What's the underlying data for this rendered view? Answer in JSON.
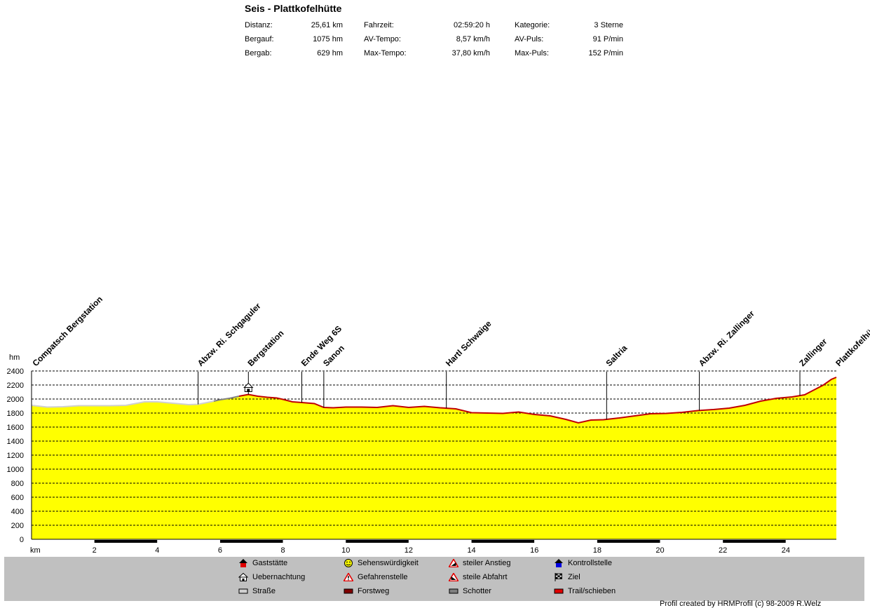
{
  "header": {
    "title": "Seis - Plattkofelhütte",
    "stats": [
      {
        "label": "Distanz:",
        "value": "25,61 km"
      },
      {
        "label": "Fahrzeit:",
        "value": "02:59:20 h"
      },
      {
        "label": "Kategorie:",
        "value": "3 Sterne"
      },
      {
        "label": "Bergauf:",
        "value": "1075 hm"
      },
      {
        "label": "AV-Tempo:",
        "value": "8,57 km/h"
      },
      {
        "label": "AV-Puls:",
        "value": "91 P/min"
      },
      {
        "label": "Bergab:",
        "value": "629 hm"
      },
      {
        "label": "Max-Tempo:",
        "value": "37,80 km/h"
      },
      {
        "label": "Max-Puls:",
        "value": "152 P/min"
      }
    ]
  },
  "chart_data": {
    "type": "area",
    "title": "",
    "xlabel": "km",
    "ylabel": "hm",
    "xlim": [
      0,
      25.61
    ],
    "ylim": [
      0,
      2400
    ],
    "yticks": [
      0,
      200,
      400,
      600,
      800,
      1000,
      1200,
      1400,
      1600,
      1800,
      2000,
      2200,
      2400
    ],
    "xticks": [
      2,
      4,
      6,
      8,
      10,
      12,
      14,
      16,
      18,
      20,
      22,
      24
    ],
    "grid": true,
    "fill_color": "#ffff00",
    "x": [
      0,
      0.5,
      1,
      1.5,
      2,
      2.5,
      3,
      3.3,
      3.6,
      4,
      4.5,
      5,
      5.3,
      5.7,
      6,
      6.3,
      6.6,
      6.9,
      7.2,
      7.5,
      7.8,
      8,
      8.3,
      8.6,
      9,
      9.3,
      9.6,
      10,
      10.5,
      11,
      11.5,
      12,
      12.5,
      13,
      13.5,
      14,
      14.5,
      15,
      15.5,
      16,
      16.5,
      17,
      17.4,
      17.8,
      18.2,
      18.7,
      19.2,
      19.7,
      20.2,
      20.7,
      21.2,
      21.7,
      22.2,
      22.7,
      23.2,
      23.7,
      24.2,
      24.6,
      24.9,
      25.2,
      25.45,
      25.61
    ],
    "values": [
      1910,
      1885,
      1890,
      1905,
      1905,
      1905,
      1910,
      1935,
      1960,
      1960,
      1940,
      1920,
      1925,
      1960,
      1990,
      2010,
      2040,
      2065,
      2040,
      2025,
      2015,
      1995,
      1960,
      1950,
      1935,
      1880,
      1875,
      1885,
      1885,
      1880,
      1905,
      1880,
      1895,
      1875,
      1860,
      1805,
      1800,
      1795,
      1815,
      1780,
      1760,
      1710,
      1660,
      1700,
      1705,
      1730,
      1760,
      1790,
      1795,
      1810,
      1835,
      1850,
      1870,
      1910,
      1970,
      2010,
      2030,
      2060,
      2130,
      2200,
      2280,
      2310
    ],
    "surfaces": [
      {
        "from": 0,
        "to": 5.8,
        "type": "Straße"
      },
      {
        "from": 5.8,
        "to": 6.6,
        "type": "Schotter"
      },
      {
        "from": 6.6,
        "to": 25.61,
        "type": "Trail/schieben"
      }
    ],
    "waypoints": [
      {
        "km": 0.05,
        "label": "Compatsch Bergstation",
        "line": false
      },
      {
        "km": 5.3,
        "label": "Abzw. Ri. Schgaguler",
        "line": true
      },
      {
        "km": 6.9,
        "label": "Bergstation",
        "line": true
      },
      {
        "km": 8.6,
        "label": "Ende Weg 6S",
        "line": true
      },
      {
        "km": 9.3,
        "label": "Sanon",
        "line": true
      },
      {
        "km": 13.2,
        "label": "Hartl Schwaige",
        "line": true
      },
      {
        "km": 18.3,
        "label": "Saltria",
        "line": true
      },
      {
        "km": 21.25,
        "label": "Abzw. Ri. Zallinger",
        "line": true
      },
      {
        "km": 24.45,
        "label": "Zallinger",
        "line": true
      },
      {
        "km": 25.61,
        "label": "Plattkofelhütte",
        "line": false
      }
    ],
    "icon_markers": [
      {
        "km": 6.9,
        "type": "Uebernachtung"
      }
    ]
  },
  "legend": {
    "items": [
      {
        "label": "Gaststätte",
        "icon": "house-red-icon"
      },
      {
        "label": "Sehenswürdigkeit",
        "icon": "smiley-icon"
      },
      {
        "label": "steiler Anstieg",
        "icon": "warning-climb-icon"
      },
      {
        "label": "Kontrollstelle",
        "icon": "house-blue-icon"
      },
      {
        "label": "Uebernachtung",
        "icon": "hut-icon"
      },
      {
        "label": "Gefahrenstelle",
        "icon": "warning-icon"
      },
      {
        "label": "steile Abfahrt",
        "icon": "warning-descent-icon"
      },
      {
        "label": "Ziel",
        "icon": "checkered-flag-icon"
      },
      {
        "label": "Straße",
        "icon": "surface-road-icon",
        "color": "#d0d0d0"
      },
      {
        "label": "Forstweg",
        "icon": "surface-forest-icon",
        "color": "#800000"
      },
      {
        "label": "Schotter",
        "icon": "surface-gravel-icon",
        "color": "#808080"
      },
      {
        "label": "Trail/schieben",
        "icon": "surface-trail-icon",
        "color": "#e00000"
      }
    ]
  },
  "credit": "Profil created by HRMProfil (c) 98-2009 R.Welz"
}
